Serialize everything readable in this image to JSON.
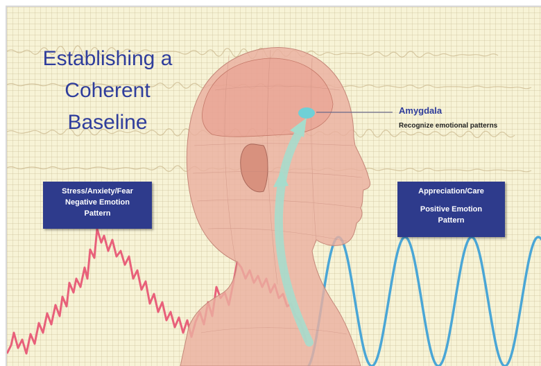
{
  "title": {
    "line1": "Establishing a",
    "line2": "Coherent",
    "line3": "Baseline"
  },
  "amygdala": {
    "name": "Amygdala",
    "description": "Recognize emotional  patterns"
  },
  "negative_box": {
    "line1": "Stress/Anxiety/Fear",
    "line2": "Negative Emotion",
    "line3": "Pattern"
  },
  "positive_box": {
    "line1": "Appreciation/Care",
    "line2": "Positive Emotion",
    "line3": "Pattern"
  },
  "colors": {
    "background": "#f7f3d6",
    "title": "#2f3d9c",
    "box": "#2e3b8c",
    "negative_wave": "#e8607a",
    "positive_wave": "#4aa6d6",
    "pathway": "#a6dccc",
    "amygdala_dot": "#6fd0d6",
    "head": "#eab0a0"
  },
  "icons": {
    "figure": "human-head-profile-icon",
    "amygdala_marker": "amygdala-dot-icon"
  }
}
